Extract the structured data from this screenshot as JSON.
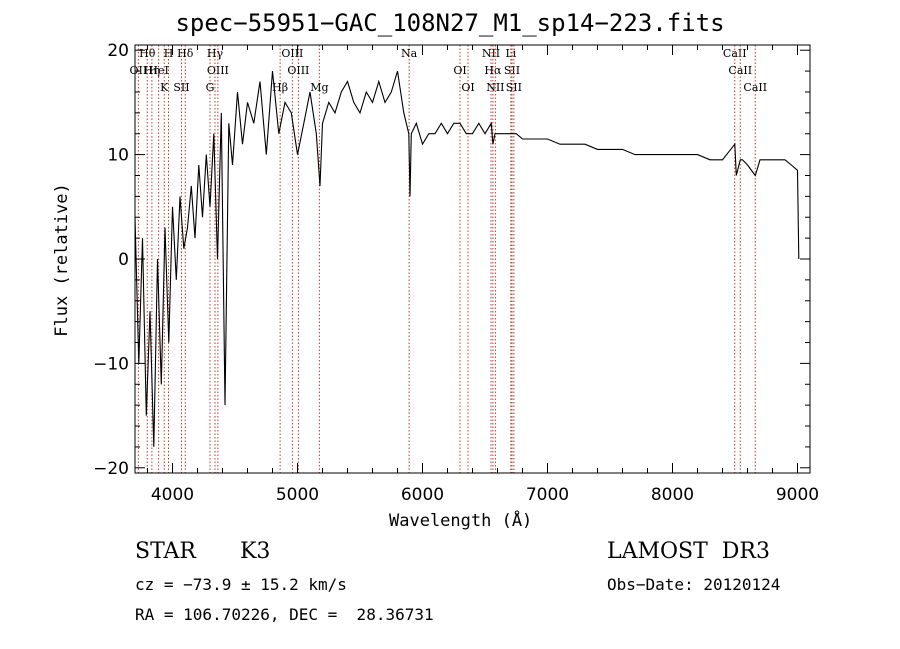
{
  "chart_data": {
    "type": "line",
    "title": "spec−55951−GAC_108N27_M1_sp14−223.fits",
    "xlabel": "Wavelength (Å)",
    "ylabel": "Flux (relative)",
    "xlim": [
      3700,
      9100
    ],
    "ylim": [
      -20.5,
      20.5
    ],
    "xticks": [
      4000,
      5000,
      6000,
      7000,
      8000,
      9000
    ],
    "yticks": [
      -20,
      -10,
      0,
      10,
      20
    ],
    "xtick_labels": [
      "4000",
      "5000",
      "6000",
      "7000",
      "8000",
      "9000"
    ],
    "ytick_labels": [
      "−20",
      "−10",
      "0",
      "10",
      "20"
    ],
    "series": [
      {
        "name": "spectrum",
        "x": [
          3700,
          3730,
          3760,
          3790,
          3820,
          3850,
          3880,
          3910,
          3940,
          3970,
          4000,
          4030,
          4060,
          4090,
          4120,
          4150,
          4180,
          4210,
          4240,
          4270,
          4300,
          4330,
          4360,
          4390,
          4420,
          4450,
          4480,
          4520,
          4560,
          4600,
          4650,
          4700,
          4750,
          4800,
          4850,
          4900,
          4950,
          5000,
          5050,
          5100,
          5150,
          5180,
          5200,
          5250,
          5300,
          5350,
          5400,
          5450,
          5500,
          5550,
          5600,
          5650,
          5700,
          5750,
          5800,
          5850,
          5890,
          5900,
          5910,
          5950,
          6000,
          6050,
          6100,
          6150,
          6200,
          6250,
          6300,
          6350,
          6400,
          6450,
          6500,
          6550,
          6563,
          6580,
          6600,
          6650,
          6700,
          6750,
          6800,
          6900,
          7000,
          7100,
          7200,
          7300,
          7400,
          7500,
          7600,
          7700,
          7800,
          7900,
          8000,
          8100,
          8200,
          8300,
          8400,
          8498,
          8510,
          8542,
          8560,
          8600,
          8662,
          8700,
          8750,
          8800,
          8850,
          8900,
          8950,
          9000,
          9010
        ],
        "values": [
          4,
          -10,
          2,
          -15,
          -5,
          -18,
          0,
          -12,
          3,
          -8,
          5,
          -2,
          6,
          1,
          3,
          7,
          2,
          9,
          4,
          10,
          5,
          12,
          0,
          14,
          -14,
          13,
          9,
          16,
          11,
          15,
          13,
          17,
          10,
          18,
          12,
          15,
          14,
          10,
          13,
          16,
          12,
          7,
          13,
          15,
          14,
          16,
          17,
          15,
          14,
          16,
          15,
          17,
          15,
          16,
          18,
          14,
          12,
          6,
          12,
          13,
          11,
          12,
          12,
          13,
          12,
          13,
          13,
          12,
          12,
          13,
          12,
          13,
          11,
          12,
          12,
          12,
          12,
          12,
          11.5,
          11.5,
          11.5,
          11,
          11,
          11,
          10.5,
          10.5,
          10.5,
          10,
          10,
          10,
          10,
          10,
          10,
          9.5,
          9.5,
          11,
          8,
          9.5,
          9.5,
          9,
          8,
          9.5,
          9.5,
          9.5,
          9.5,
          9.5,
          9,
          8.5,
          0
        ]
      }
    ],
    "lines": [
      {
        "name": "Hθ",
        "x": 3798
      },
      {
        "name": "Hη",
        "x": 3835
      },
      {
        "name": "K",
        "x": 3934
      },
      {
        "name": "H",
        "x": 3968
      },
      {
        "name": "HeI",
        "x": 3889
      },
      {
        "name": "SII",
        "x": 4072
      },
      {
        "name": "Hδ",
        "x": 4102
      },
      {
        "name": "OII",
        "x": 3727
      },
      {
        "name": "G",
        "x": 4300
      },
      {
        "name": "Hγ",
        "x": 4340
      },
      {
        "name": "OIII",
        "x": 4363
      },
      {
        "name": "Hβ",
        "x": 4861
      },
      {
        "name": "OIII",
        "x": 4959
      },
      {
        "name": "OIII",
        "x": 5007
      },
      {
        "name": "Mg",
        "x": 5175
      },
      {
        "name": "Na",
        "x": 5893
      },
      {
        "name": "OI",
        "x": 6300
      },
      {
        "name": "OI",
        "x": 6364
      },
      {
        "name": "NII",
        "x": 6548
      },
      {
        "name": "Hα",
        "x": 6563
      },
      {
        "name": "NII",
        "x": 6583
      },
      {
        "name": "Li",
        "x": 6707
      },
      {
        "name": "SII",
        "x": 6716
      },
      {
        "name": "SII",
        "x": 6731
      },
      {
        "name": "CaII",
        "x": 8498
      },
      {
        "name": "CaII",
        "x": 8542
      },
      {
        "name": "CaII",
        "x": 8662
      }
    ]
  },
  "info": {
    "class": "STAR",
    "subclass": "K3",
    "survey": "LAMOST  DR3",
    "cz": "cz = −73.9 ± 15.2 km/s",
    "obs_date": "Obs−Date: 20120124",
    "coords": "RA = 106.70226, DEC =  28.36731"
  },
  "colors": {
    "line_marker": "#c0392b",
    "spectrum": "#000000"
  }
}
